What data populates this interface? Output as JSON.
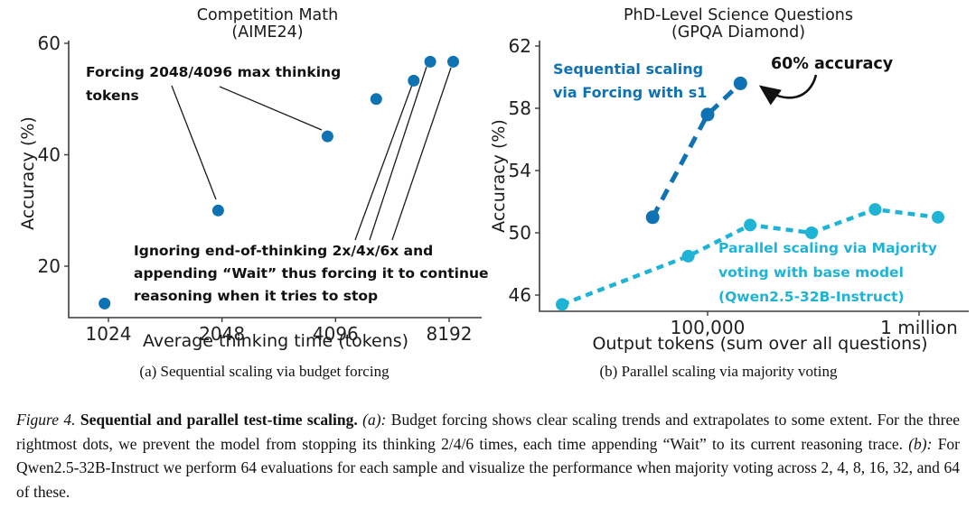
{
  "figure": {
    "panel_a_caption": "(a) Sequential scaling via budget forcing",
    "panel_b_caption": "(b) Parallel scaling via majority voting",
    "caption": {
      "figure_label": "Figure 4.",
      "title": "Sequential and parallel test-time scaling.",
      "a_label": "(a):",
      "a_text": "Budget forcing shows clear scaling trends and extrapolates to some extent. For the three rightmost dots, we prevent the model from stopping its thinking 2/4/6 times, each time appending “Wait” to its current reasoning trace.",
      "b_label": "(b):",
      "b_text": "For Qwen2.5-32B-Instruct we perform 64 evaluations for each sample and visualize the performance when majority voting across 2, 4, 8, 16, 32, and 64 of these."
    }
  },
  "chart_data": [
    {
      "type": "scatter",
      "title_lines": [
        "Competition Math",
        "(AIME24)"
      ],
      "xlabel": "Average thinking time (tokens)",
      "ylabel": "Accuracy (%)",
      "xscale": "log",
      "xlim": [
        800,
        10100
      ],
      "ylim": [
        10.7,
        60.5
      ],
      "grid": false,
      "xticks": [
        {
          "v": 1024,
          "label": "1024"
        },
        {
          "v": 2048,
          "label": "2048"
        },
        {
          "v": 4096,
          "label": "4096"
        },
        {
          "v": 8192,
          "label": "8192"
        }
      ],
      "yticks": [
        {
          "v": 20,
          "label": "20"
        },
        {
          "v": 40,
          "label": "40"
        },
        {
          "v": 60,
          "label": "60"
        }
      ],
      "series": [
        {
          "color": "#0f72b2",
          "points": [
            [
              1000,
              13.3
            ],
            [
              2000,
              30.0
            ],
            [
              3900,
              43.3
            ],
            [
              5250,
              50.0
            ],
            [
              6600,
              53.3
            ],
            [
              7300,
              56.7
            ],
            [
              8400,
              56.7
            ]
          ]
        }
      ],
      "annotations": {
        "forcing": {
          "color": "#111111",
          "lines": [
            "Forcing 2048/4096 max thinking",
            "tokens"
          ]
        },
        "ignoring": {
          "color": "#111111",
          "lines": [
            "Ignoring end-of-thinking 2x/4x/6x and",
            "appending “Wait” thus forcing it to continue",
            "reasoning when it tries to stop"
          ]
        }
      }
    },
    {
      "type": "line",
      "title_lines": [
        "PhD-Level Science Questions",
        "(GPQA Diamond)"
      ],
      "xlabel": "Output tokens (sum over all questions)",
      "ylabel": "Accuracy (%)",
      "xscale": "log",
      "xlim": [
        16000,
        1690000
      ],
      "ylim": [
        45.0,
        62.4
      ],
      "grid": false,
      "xticks": [
        {
          "v": 100000,
          "label": "100,000"
        },
        {
          "v": 1000000,
          "label": "1 million"
        }
      ],
      "yticks": [
        {
          "v": 46,
          "label": "46"
        },
        {
          "v": 50,
          "label": "50"
        },
        {
          "v": 54,
          "label": "54"
        },
        {
          "v": 58,
          "label": "58"
        },
        {
          "v": 62,
          "label": "62"
        }
      ],
      "series": [
        {
          "name": "Sequential scaling via Forcing with s1",
          "color": "#0f72b2",
          "points": [
            [
              55000,
              51.0
            ],
            [
              100000,
              57.6
            ],
            [
              143000,
              59.6
            ]
          ]
        },
        {
          "name": "Parallel scaling via Majority voting with base model (Qwen2.5-32B-Instruct)",
          "color": "#1fb3d5",
          "points": [
            [
              20500,
              45.4
            ],
            [
              81000,
              48.5
            ],
            [
              159000,
              50.5
            ],
            [
              310000,
              50.0
            ],
            [
              620000,
              51.5
            ],
            [
              1230000,
              51.0
            ]
          ]
        }
      ],
      "annotations": {
        "sequential": {
          "color": "#0f72b2",
          "lines": [
            "Sequential scaling",
            "via Forcing with s1"
          ]
        },
        "accuracy": {
          "color": "#111111",
          "lines": [
            "60% accuracy"
          ]
        },
        "parallel": {
          "color": "#1fb3d5",
          "lines": [
            "Parallel scaling via Majority",
            "voting with base model",
            "(Qwen2.5-32B-Instruct)"
          ]
        }
      }
    }
  ]
}
